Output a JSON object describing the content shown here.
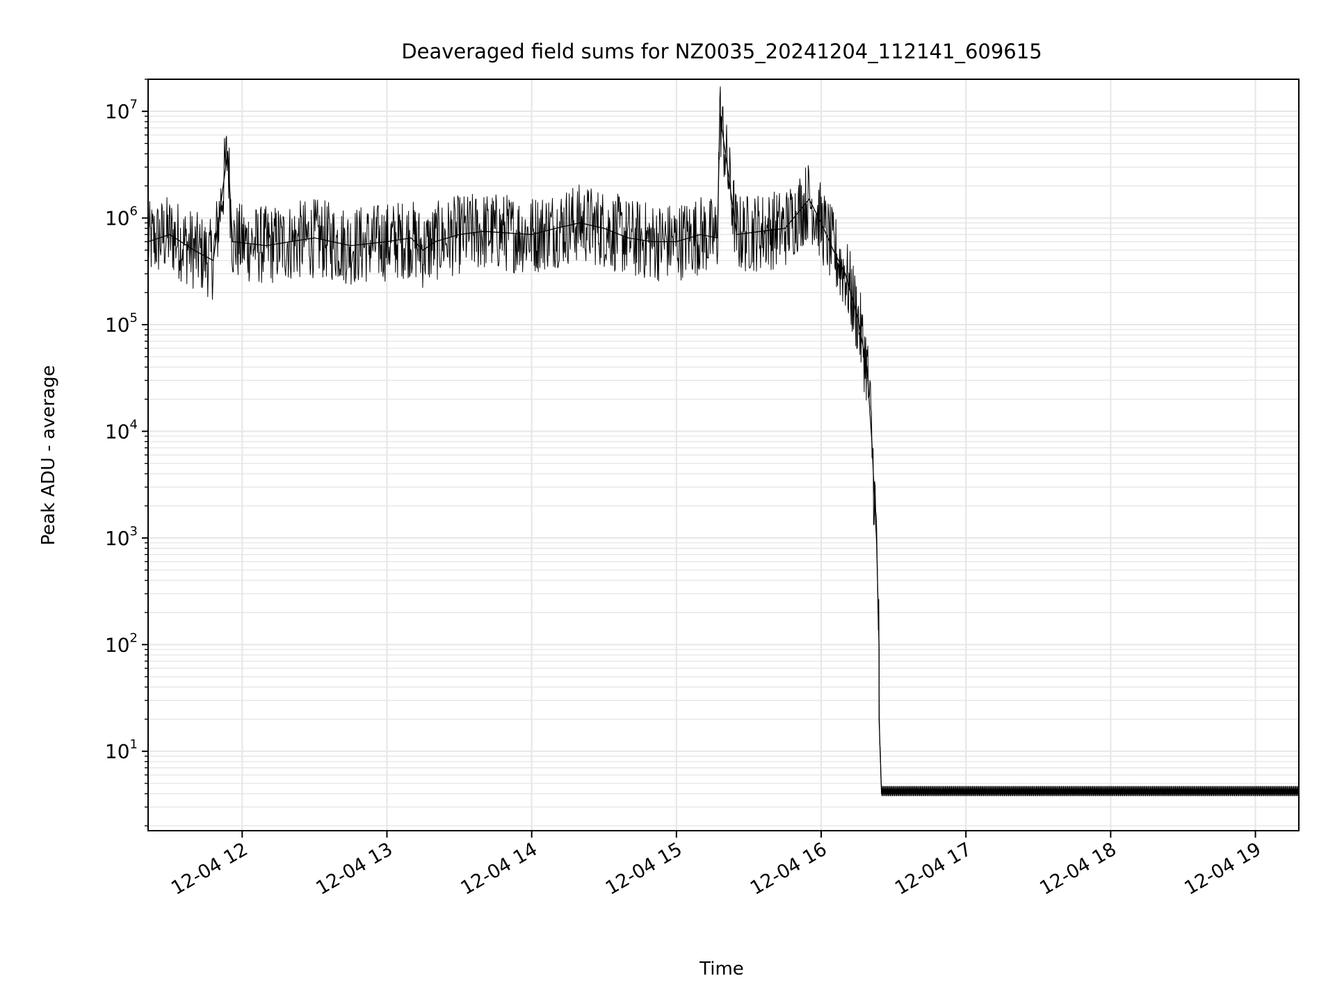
{
  "chart_data": {
    "type": "line",
    "title": "Deaveraged field sums for NZ0035_20241204_112141_609615",
    "xlabel": "Time",
    "ylabel": "Peak ADU - average",
    "yscale": "log",
    "ylim": [
      1.8,
      20000000
    ],
    "xlim": [
      "12-04 11:21",
      "12-04 19:18"
    ],
    "grid": true,
    "line_color": "#000000",
    "grid_color": "#e6e6e6",
    "x_ticks": [
      "12-04 12",
      "12-04 13",
      "12-04 14",
      "12-04 15",
      "12-04 16",
      "12-04 17",
      "12-04 18",
      "12-04 19"
    ],
    "y_ticks": [
      {
        "value": 10,
        "base": "10",
        "exp": "1"
      },
      {
        "value": 100,
        "base": "10",
        "exp": "2"
      },
      {
        "value": 1000,
        "base": "10",
        "exp": "3"
      },
      {
        "value": 10000,
        "base": "10",
        "exp": "4"
      },
      {
        "value": 100000,
        "base": "10",
        "exp": "5"
      },
      {
        "value": 1000000,
        "base": "10",
        "exp": "6"
      },
      {
        "value": 10000000,
        "base": "10",
        "exp": "7"
      }
    ],
    "series": [
      {
        "x": [
          "12-04 11:21",
          "12-04 11:30",
          "12-04 11:40",
          "12-04 11:48",
          "12-04 11:54",
          "12-04 11:56",
          "12-04 12:10",
          "12-04 12:20",
          "12-04 12:30",
          "12-04 12:45",
          "12-04 13:00",
          "12-04 13:10",
          "12-04 13:15",
          "12-04 13:20",
          "12-04 13:30",
          "12-04 13:40",
          "12-04 14:00",
          "12-04 14:10",
          "12-04 14:20",
          "12-04 14:30",
          "12-04 14:40",
          "12-04 14:50",
          "12-04 15:00",
          "12-04 15:10",
          "12-04 15:17",
          "12-04 15:18",
          "12-04 15:25",
          "12-04 15:35",
          "12-04 15:45",
          "12-04 15:55",
          "12-04 16:00",
          "12-04 16:05",
          "12-04 16:10",
          "12-04 16:15",
          "12-04 16:19",
          "12-04 16:21",
          "12-04 16:23",
          "12-04 16:24",
          "12-04 16:24",
          "12-04 16:25",
          "12-04 17:00",
          "12-04 17:30",
          "12-04 18:00",
          "12-04 18:30",
          "12-04 19:00",
          "12-04 19:18"
        ],
        "y": [
          600000,
          700000,
          500000,
          400000,
          4200000,
          600000,
          550000,
          600000,
          650000,
          550000,
          600000,
          650000,
          500000,
          600000,
          700000,
          750000,
          700000,
          800000,
          900000,
          800000,
          650000,
          600000,
          600000,
          700000,
          650000,
          9500000,
          700000,
          750000,
          800000,
          1500000,
          900000,
          500000,
          300000,
          120000,
          40000,
          8000,
          900,
          90,
          20,
          4,
          4,
          4,
          4,
          4,
          4,
          4
        ]
      }
    ]
  }
}
